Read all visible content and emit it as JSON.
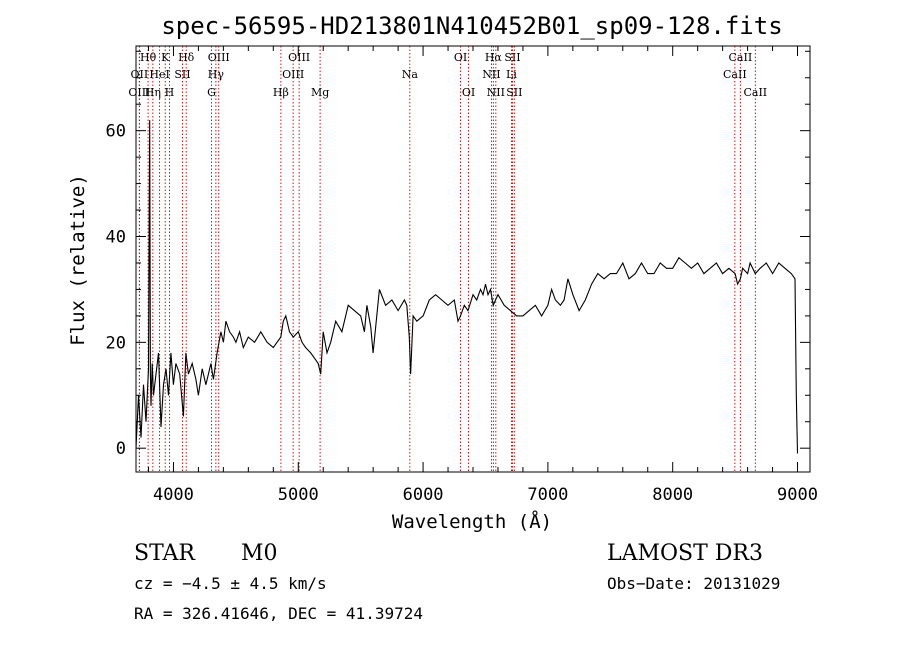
{
  "chart_data": {
    "type": "line",
    "title": "spec-56595-HD213801N410452B01_sp09-128.fits",
    "xlabel": "Wavelength (Å)",
    "ylabel": "Flux (relative)",
    "xlim": [
      3700,
      9100
    ],
    "ylim": [
      -4.5,
      76
    ],
    "x_ticks": [
      4000,
      5000,
      6000,
      7000,
      8000,
      9000
    ],
    "y_ticks": [
      0,
      20,
      40,
      60
    ],
    "grid": false,
    "line_color": "#000000",
    "marker_color": "#c00000",
    "series": [
      {
        "name": "flux",
        "x": [
          3700,
          3720,
          3740,
          3760,
          3780,
          3800,
          3810,
          3815,
          3820,
          3830,
          3840,
          3860,
          3880,
          3900,
          3920,
          3940,
          3960,
          3980,
          4000,
          4020,
          4050,
          4080,
          4100,
          4120,
          4150,
          4180,
          4200,
          4230,
          4260,
          4280,
          4300,
          4320,
          4350,
          4380,
          4400,
          4420,
          4450,
          4480,
          4500,
          4530,
          4560,
          4600,
          4650,
          4700,
          4750,
          4800,
          4830,
          4860,
          4880,
          4900,
          4930,
          4960,
          5000,
          5030,
          5060,
          5100,
          5130,
          5160,
          5180,
          5200,
          5230,
          5260,
          5300,
          5350,
          5400,
          5450,
          5500,
          5530,
          5550,
          5580,
          5600,
          5650,
          5700,
          5750,
          5800,
          5850,
          5870,
          5890,
          5900,
          5920,
          5950,
          6000,
          6050,
          6100,
          6150,
          6200,
          6250,
          6280,
          6300,
          6330,
          6360,
          6400,
          6430,
          6460,
          6480,
          6500,
          6520,
          6540,
          6562,
          6580,
          6600,
          6650,
          6700,
          6750,
          6800,
          6850,
          6900,
          6950,
          7000,
          7030,
          7060,
          7100,
          7130,
          7160,
          7200,
          7250,
          7300,
          7350,
          7400,
          7450,
          7500,
          7550,
          7600,
          7650,
          7700,
          7750,
          7800,
          7850,
          7900,
          7950,
          8000,
          8050,
          8100,
          8150,
          8200,
          8250,
          8300,
          8350,
          8400,
          8450,
          8500,
          8520,
          8542,
          8560,
          8600,
          8620,
          8662,
          8700,
          8750,
          8800,
          8850,
          8900,
          8950,
          8980,
          8990,
          9000
        ],
        "y": [
          0,
          10,
          2,
          12,
          5,
          15,
          62,
          14,
          8,
          16,
          10,
          14,
          18,
          4,
          12,
          15,
          10,
          18,
          12,
          16,
          14,
          6,
          18,
          14,
          16,
          13,
          10,
          15,
          12,
          14,
          16,
          13,
          18,
          22,
          20,
          24,
          22,
          21,
          20,
          22,
          19,
          21,
          20,
          22,
          20,
          19,
          20,
          21,
          24,
          25,
          22,
          21,
          22,
          20,
          19,
          18,
          17,
          16,
          14,
          22,
          18,
          20,
          24,
          22,
          27,
          26,
          25,
          22,
          27,
          23,
          18,
          30,
          27,
          28,
          26,
          28,
          27,
          21,
          14,
          25,
          24,
          25,
          28,
          29,
          28,
          27,
          28,
          24,
          25,
          27,
          26,
          29,
          28,
          30,
          29,
          31,
          29,
          30,
          27,
          28,
          29,
          27,
          26,
          25,
          25,
          26,
          27,
          25,
          27,
          30,
          28,
          27,
          28,
          32,
          29,
          26,
          28,
          31,
          33,
          32,
          33,
          33,
          35,
          32,
          33,
          35,
          33,
          33,
          35,
          34,
          34,
          36,
          35,
          34,
          35,
          33,
          34,
          35,
          33,
          34,
          33,
          31,
          32,
          34,
          33,
          35,
          33,
          34,
          35,
          33,
          35,
          34,
          33,
          32,
          10,
          -1
        ]
      }
    ],
    "lines": [
      {
        "label": "Hθ",
        "x": 3797,
        "row": 1
      },
      {
        "label": "OII",
        "x": 3727,
        "row": 2
      },
      {
        "label": "OIII",
        "x": 3727,
        "row": 3
      },
      {
        "label": "Hη",
        "x": 3835,
        "row": 3
      },
      {
        "label": "HeI",
        "x": 3889,
        "row": 2
      },
      {
        "label": "K",
        "x": 3934,
        "row": 1
      },
      {
        "label": "H",
        "x": 3968,
        "row": 3
      },
      {
        "label": "SII",
        "x": 4072,
        "row": 2
      },
      {
        "label": "Hδ",
        "x": 4102,
        "row": 1
      },
      {
        "label": "OIII",
        "x": 4363,
        "row": 1
      },
      {
        "label": "Hγ",
        "x": 4340,
        "row": 2
      },
      {
        "label": "G",
        "x": 4305,
        "row": 3
      },
      {
        "label": "Hβ",
        "x": 4861,
        "row": 3
      },
      {
        "label": "OIII",
        "x": 5007,
        "row": 1
      },
      {
        "label": "OIII",
        "x": 4959,
        "row": 2
      },
      {
        "label": "Mg",
        "x": 5175,
        "row": 3
      },
      {
        "label": "Na",
        "x": 5894,
        "row": 2
      },
      {
        "label": "OI",
        "x": 6300,
        "row": 1
      },
      {
        "label": "OI",
        "x": 6364,
        "row": 3
      },
      {
        "label": "Hα",
        "x": 6563,
        "row": 1
      },
      {
        "label": "NII",
        "x": 6548,
        "row": 2
      },
      {
        "label": "NII",
        "x": 6583,
        "row": 3
      },
      {
        "label": "SII",
        "x": 6716,
        "row": 1
      },
      {
        "label": "Li",
        "x": 6708,
        "row": 2
      },
      {
        "label": "SII",
        "x": 6731,
        "row": 3
      },
      {
        "label": "CaII",
        "x": 8542,
        "row": 1
      },
      {
        "label": "CaII",
        "x": 8498,
        "row": 2
      },
      {
        "label": "CaII",
        "x": 8662,
        "row": 3
      }
    ]
  },
  "footer": {
    "object_type": "STAR",
    "subclass": "M0",
    "survey": "LAMOST DR3",
    "cz_line": "cz = −4.5 ± 4.5 km/s",
    "obs_date": "Obs−Date: 20131029",
    "coords": "RA = 326.41646, DEC =  41.39724"
  }
}
